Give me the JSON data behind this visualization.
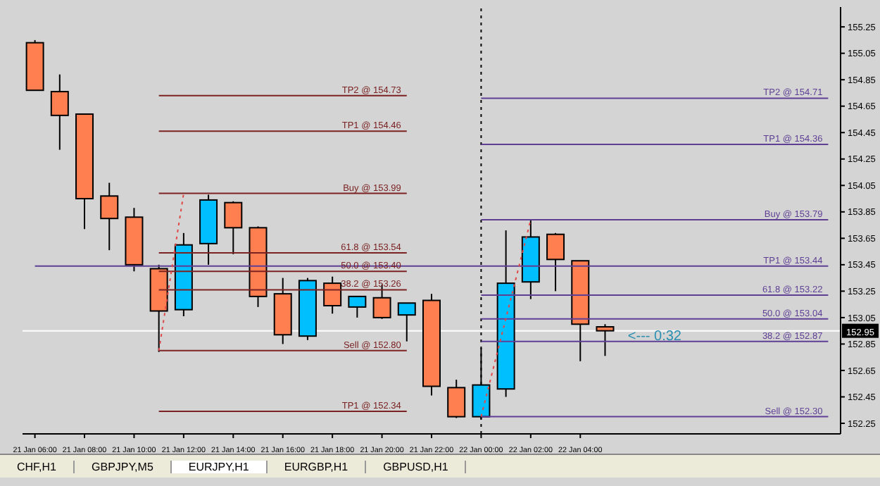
{
  "chart_data": {
    "type": "candlestick",
    "categories": [
      "21 Jan 06:00",
      null,
      "21 Jan 08:00",
      null,
      "21 Jan 10:00",
      null,
      "21 Jan 12:00",
      null,
      "21 Jan 14:00",
      null,
      "21 Jan 16:00",
      null,
      "21 Jan 18:00",
      null,
      "21 Jan 20:00",
      null,
      "21 Jan 22:00",
      null,
      "22 Jan 00:00",
      null,
      "22 Jan 02:00",
      null,
      "22 Jan 04:00",
      null,
      null,
      null,
      null,
      null,
      null,
      null,
      null,
      null,
      null
    ],
    "ohlc": [
      [
        155.13,
        155.15,
        154.77,
        154.77
      ],
      [
        154.76,
        154.89,
        154.32,
        154.58
      ],
      [
        154.59,
        154.59,
        153.72,
        153.95
      ],
      [
        153.97,
        154.07,
        153.56,
        153.8
      ],
      [
        153.81,
        153.88,
        153.4,
        153.45
      ],
      [
        153.42,
        153.45,
        152.79,
        153.1
      ],
      [
        153.11,
        153.69,
        153.06,
        153.6
      ],
      [
        153.61,
        153.98,
        153.45,
        153.94
      ],
      [
        153.92,
        153.93,
        153.53,
        153.73
      ],
      [
        153.73,
        153.74,
        153.13,
        153.21
      ],
      [
        153.23,
        153.35,
        152.85,
        152.92
      ],
      [
        152.91,
        153.35,
        152.88,
        153.33
      ],
      [
        153.31,
        153.36,
        153.08,
        153.14
      ],
      [
        153.13,
        153.21,
        153.05,
        153.21
      ],
      [
        153.2,
        153.3,
        153.04,
        153.05
      ],
      [
        153.07,
        153.16,
        152.87,
        153.16
      ],
      [
        153.18,
        153.23,
        152.46,
        152.53
      ],
      [
        152.52,
        152.58,
        152.29,
        152.3
      ],
      [
        152.3,
        152.82,
        152.28,
        152.54
      ],
      [
        152.51,
        153.71,
        152.45,
        153.31
      ],
      [
        153.32,
        153.79,
        153.19,
        153.66
      ],
      [
        153.68,
        153.69,
        153.25,
        153.49
      ],
      [
        153.48,
        153.48,
        152.72,
        153
      ],
      [
        152.98,
        153,
        152.76,
        152.95
      ],
      null,
      null,
      null,
      null,
      null,
      null,
      null,
      null,
      null
    ],
    "colors": [
      "#ff7f50",
      "#ff7f50",
      "#ff7f50",
      "#ff7f50",
      "#ff7f50",
      "#ff7f50",
      "#00bfff",
      "#00bfff",
      "#ff7f50",
      "#ff7f50",
      "#ff7f50",
      "#00bfff",
      "#ff7f50",
      "#00bfff",
      "#ff7f50",
      "#00bfff",
      "#ff7f50",
      "#ff7f50",
      "#00bfff",
      "#00bfff",
      "#00bfff",
      "#ff7f50",
      "#ff7f50",
      "#ff7f50",
      null,
      null,
      null,
      null,
      null,
      null,
      null,
      null,
      null
    ],
    "ylim": [
      152.17,
      155.4
    ],
    "yticks": [
      152.25,
      152.45,
      152.65,
      152.85,
      153.05,
      153.25,
      153.45,
      153.65,
      153.85,
      154.05,
      154.25,
      154.45,
      154.65,
      154.85,
      155.05,
      155.25
    ],
    "series": [
      {
        "type": "line",
        "name": "TP2 @ 154.73",
        "color": "#7b2222",
        "values": [
          null,
          null,
          null,
          null,
          null,
          154.73,
          154.73,
          154.73,
          154.73,
          154.73,
          154.73,
          154.73,
          154.73,
          154.73,
          154.73,
          154.73,
          null,
          null,
          null,
          null,
          null,
          null,
          null,
          null,
          null,
          null,
          null,
          null,
          null,
          null,
          null,
          null,
          null
        ]
      },
      {
        "type": "line",
        "name": "TP1 @ 154.46",
        "color": "#7b2222",
        "values": [
          null,
          null,
          null,
          null,
          null,
          154.46,
          154.46,
          154.46,
          154.46,
          154.46,
          154.46,
          154.46,
          154.46,
          154.46,
          154.46,
          154.46,
          null,
          null,
          null,
          null,
          null,
          null,
          null,
          null,
          null,
          null,
          null,
          null,
          null,
          null,
          null,
          null,
          null
        ]
      },
      {
        "type": "line",
        "name": "Buy @ 153.99",
        "color": "#7b2222",
        "values": [
          null,
          null,
          null,
          null,
          null,
          153.99,
          153.99,
          153.99,
          153.99,
          153.99,
          153.99,
          153.99,
          153.99,
          153.99,
          153.99,
          153.99,
          null,
          null,
          null,
          null,
          null,
          null,
          null,
          null,
          null,
          null,
          null,
          null,
          null,
          null,
          null,
          null,
          null
        ]
      },
      {
        "type": "line",
        "name": "61.8 @ 153.54",
        "color": "#7b2222",
        "values": [
          null,
          null,
          null,
          null,
          null,
          153.54,
          153.54,
          153.54,
          153.54,
          153.54,
          153.54,
          153.54,
          153.54,
          153.54,
          153.54,
          153.54,
          null,
          null,
          null,
          null,
          null,
          null,
          null,
          null,
          null,
          null,
          null,
          null,
          null,
          null,
          null,
          null,
          null
        ]
      },
      {
        "type": "line",
        "name": "50.0 @ 153.40",
        "color": "#7b2222",
        "values": [
          null,
          null,
          null,
          null,
          null,
          153.4,
          153.4,
          153.4,
          153.4,
          153.4,
          153.4,
          153.4,
          153.4,
          153.4,
          153.4,
          153.4,
          null,
          null,
          null,
          null,
          null,
          null,
          null,
          null,
          null,
          null,
          null,
          null,
          null,
          null,
          null,
          null,
          null
        ]
      },
      {
        "type": "line",
        "name": "38.2 @ 153.26",
        "color": "#7b2222",
        "values": [
          null,
          null,
          null,
          null,
          null,
          153.26,
          153.26,
          153.26,
          153.26,
          153.26,
          153.26,
          153.26,
          153.26,
          153.26,
          153.26,
          153.26,
          null,
          null,
          null,
          null,
          null,
          null,
          null,
          null,
          null,
          null,
          null,
          null,
          null,
          null,
          null,
          null,
          null
        ]
      },
      {
        "type": "line",
        "name": "Sell @ 152.80",
        "color": "#7b2222",
        "values": [
          null,
          null,
          null,
          null,
          null,
          152.8,
          152.8,
          152.8,
          152.8,
          152.8,
          152.8,
          152.8,
          152.8,
          152.8,
          152.8,
          152.8,
          null,
          null,
          null,
          null,
          null,
          null,
          null,
          null,
          null,
          null,
          null,
          null,
          null,
          null,
          null,
          null,
          null
        ]
      },
      {
        "type": "line",
        "name": "TP1 @ 152.34",
        "color": "#7b2222",
        "values": [
          null,
          null,
          null,
          null,
          null,
          152.34,
          152.34,
          152.34,
          152.34,
          152.34,
          152.34,
          152.34,
          152.34,
          152.34,
          152.34,
          152.34,
          null,
          null,
          null,
          null,
          null,
          null,
          null,
          null,
          null,
          null,
          null,
          null,
          null,
          null,
          null,
          null,
          null
        ]
      },
      {
        "type": "line",
        "name": "TP2 @ 154.71",
        "color": "#5e3f94",
        "values": [
          null,
          null,
          null,
          null,
          null,
          null,
          null,
          null,
          null,
          null,
          null,
          null,
          null,
          null,
          null,
          null,
          null,
          null,
          154.71,
          154.71,
          154.71,
          154.71,
          154.71,
          154.71,
          154.71,
          154.71,
          154.71,
          154.71,
          154.71,
          154.71,
          154.71,
          154.71,
          154.71
        ]
      },
      {
        "type": "line",
        "name": "TP1 @ 154.36",
        "color": "#5e3f94",
        "values": [
          null,
          null,
          null,
          null,
          null,
          null,
          null,
          null,
          null,
          null,
          null,
          null,
          null,
          null,
          null,
          null,
          null,
          null,
          154.36,
          154.36,
          154.36,
          154.36,
          154.36,
          154.36,
          154.36,
          154.36,
          154.36,
          154.36,
          154.36,
          154.36,
          154.36,
          154.36,
          154.36
        ]
      },
      {
        "type": "line",
        "name": "Buy @ 153.79",
        "color": "#5e3f94",
        "values": [
          null,
          null,
          null,
          null,
          null,
          null,
          null,
          null,
          null,
          null,
          null,
          null,
          null,
          null,
          null,
          null,
          null,
          null,
          153.79,
          153.79,
          153.79,
          153.79,
          153.79,
          153.79,
          153.79,
          153.79,
          153.79,
          153.79,
          153.79,
          153.79,
          153.79,
          153.79,
          153.79
        ]
      },
      {
        "type": "line",
        "name": "TP1 @ 153.44",
        "color": "#5e3f94",
        "values": [
          153.44,
          153.44,
          153.44,
          153.44,
          153.44,
          153.44,
          153.44,
          153.44,
          153.44,
          153.44,
          153.44,
          153.44,
          153.44,
          153.44,
          153.44,
          153.44,
          153.44,
          153.44,
          153.44,
          153.44,
          153.44,
          153.44,
          153.44,
          153.44,
          153.44,
          153.44,
          153.44,
          153.44,
          153.44,
          153.44,
          153.44,
          153.44,
          153.44
        ]
      },
      {
        "type": "line",
        "name": "61.8 @ 153.22",
        "color": "#5e3f94",
        "values": [
          null,
          null,
          null,
          null,
          null,
          null,
          null,
          null,
          null,
          null,
          null,
          null,
          null,
          null,
          null,
          null,
          null,
          null,
          153.22,
          153.22,
          153.22,
          153.22,
          153.22,
          153.22,
          153.22,
          153.22,
          153.22,
          153.22,
          153.22,
          153.22,
          153.22,
          153.22,
          153.22
        ]
      },
      {
        "type": "line",
        "name": "50.0 @ 153.04",
        "color": "#5e3f94",
        "values": [
          null,
          null,
          null,
          null,
          null,
          null,
          null,
          null,
          null,
          null,
          null,
          null,
          null,
          null,
          null,
          null,
          null,
          null,
          153.04,
          153.04,
          153.04,
          153.04,
          153.04,
          153.04,
          153.04,
          153.04,
          153.04,
          153.04,
          153.04,
          153.04,
          153.04,
          153.04,
          153.04
        ]
      },
      {
        "type": "line",
        "name": "38.2 @ 152.87",
        "color": "#5e3f94",
        "values": [
          null,
          null,
          null,
          null,
          null,
          null,
          null,
          null,
          null,
          null,
          null,
          null,
          null,
          null,
          null,
          null,
          null,
          null,
          152.87,
          152.87,
          152.87,
          152.87,
          152.87,
          152.87,
          152.87,
          152.87,
          152.87,
          152.87,
          152.87,
          152.87,
          152.87,
          152.87,
          152.87
        ]
      },
      {
        "type": "line",
        "name": "Sell @ 152.30",
        "color": "#5e3f94",
        "values": [
          null,
          null,
          null,
          null,
          null,
          null,
          null,
          null,
          null,
          null,
          null,
          null,
          null,
          null,
          null,
          null,
          null,
          null,
          152.3,
          152.3,
          152.3,
          152.3,
          152.3,
          152.3,
          152.3,
          152.3,
          152.3,
          152.3,
          152.3,
          152.3,
          152.3,
          152.3,
          152.3
        ]
      },
      {
        "type": "line",
        "color": "#e04848",
        "line_style": "dotted",
        "values": [
          null,
          null,
          null,
          null,
          null,
          152.8,
          153.99,
          null,
          null,
          null,
          null,
          null,
          null,
          null,
          null,
          null,
          null,
          null,
          null,
          null,
          null,
          null,
          null,
          null,
          null,
          null,
          null,
          null,
          null,
          null,
          null,
          null,
          null
        ]
      },
      {
        "type": "line",
        "color": "#e04848",
        "line_style": "dotted",
        "values": [
          null,
          null,
          null,
          null,
          null,
          null,
          null,
          null,
          null,
          null,
          null,
          null,
          null,
          null,
          null,
          null,
          null,
          null,
          152.3,
          null,
          153.79,
          null,
          null,
          null,
          null,
          null,
          null,
          null,
          null,
          null,
          null,
          null,
          null
        ]
      }
    ],
    "ref_lines": [
      {
        "axis": "x",
        "value": "22 Jan 00:00",
        "color": "#000000",
        "line_style": "dotted"
      },
      {
        "axis": "y",
        "value": 152.95,
        "label": "152.95",
        "color": "#ffffff"
      }
    ],
    "annotations": [
      {
        "text": "<--- 0:32",
        "y": 152.89
      },
      "CHF,H1",
      "GBPJPY,M5",
      "EURJPY,H1",
      "EURGBP,H1",
      "GBPUSD,H1"
    ]
  }
}
